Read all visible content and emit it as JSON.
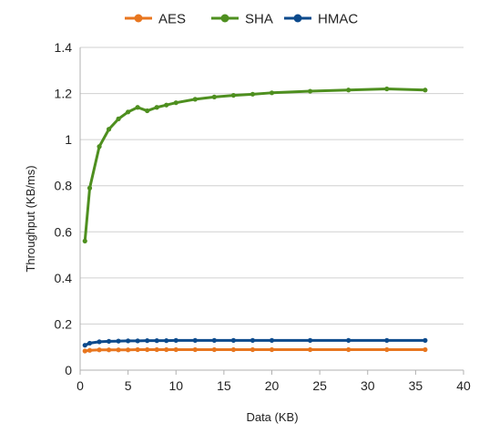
{
  "chart_data": {
    "type": "line",
    "xlabel": "Data (KB)",
    "ylabel": "Throughput (KB/ms)",
    "xlim": [
      0,
      40
    ],
    "ylim": [
      0,
      1.4
    ],
    "x_ticks": [
      "0",
      "5",
      "10",
      "15",
      "20",
      "25",
      "30",
      "35",
      "40"
    ],
    "y_ticks": [
      "0",
      "0.2",
      "0.4",
      "0.6",
      "0.8",
      "1",
      "1.2",
      "1.4"
    ],
    "grid": "horizontal",
    "legend_position": "top",
    "series": [
      {
        "name": "AES",
        "color": "#E8761F",
        "x": [
          0.5,
          1,
          2,
          3,
          4,
          5,
          6,
          7,
          8,
          9,
          10,
          12,
          14,
          16,
          18,
          20,
          24,
          28,
          32,
          36
        ],
        "y": [
          0.083,
          0.086,
          0.088,
          0.088,
          0.088,
          0.088,
          0.089,
          0.089,
          0.089,
          0.089,
          0.089,
          0.089,
          0.089,
          0.089,
          0.089,
          0.089,
          0.089,
          0.089,
          0.089,
          0.089
        ]
      },
      {
        "name": "SHA",
        "color": "#4E8F1F",
        "x": [
          0.5,
          1,
          2,
          3,
          4,
          5,
          6,
          7,
          8,
          9,
          10,
          12,
          14,
          16,
          18,
          20,
          24,
          28,
          32,
          36
        ],
        "y": [
          0.56,
          0.79,
          0.97,
          1.045,
          1.09,
          1.12,
          1.14,
          1.125,
          1.14,
          1.15,
          1.16,
          1.175,
          1.185,
          1.192,
          1.197,
          1.203,
          1.21,
          1.215,
          1.22,
          1.215
        ]
      },
      {
        "name": "HMAC",
        "color": "#0C4A8C",
        "x": [
          0.5,
          1,
          2,
          3,
          4,
          5,
          6,
          7,
          8,
          9,
          10,
          12,
          14,
          16,
          18,
          20,
          24,
          28,
          32,
          36
        ],
        "y": [
          0.108,
          0.117,
          0.123,
          0.125,
          0.126,
          0.127,
          0.127,
          0.128,
          0.128,
          0.128,
          0.129,
          0.129,
          0.129,
          0.129,
          0.129,
          0.129,
          0.129,
          0.129,
          0.129,
          0.129
        ]
      }
    ]
  }
}
